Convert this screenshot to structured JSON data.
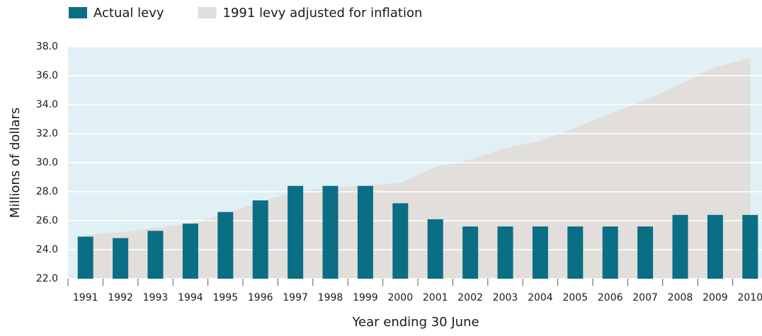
{
  "chart_data": {
    "type": "bar",
    "y_label": "Millions of dollars",
    "x_label": "Year ending 30 June",
    "categories": [
      "1991",
      "1992",
      "1993",
      "1994",
      "1995",
      "1996",
      "1997",
      "1998",
      "1999",
      "2000",
      "2001",
      "2002",
      "2003",
      "2004",
      "2005",
      "2006",
      "2007",
      "2008",
      "2009",
      "2010"
    ],
    "series": [
      {
        "name": "Actual levy",
        "type": "bar",
        "color": "#0a6e85",
        "values": [
          24.9,
          24.8,
          25.3,
          25.8,
          26.6,
          27.4,
          28.4,
          28.4,
          28.4,
          27.2,
          26.1,
          25.6,
          25.6,
          25.6,
          25.6,
          25.6,
          25.6,
          26.4,
          26.4,
          26.4
        ]
      },
      {
        "name": "1991 levy adjusted for inflation",
        "type": "area",
        "color": "#e2dedb",
        "values": [
          25.0,
          25.2,
          25.5,
          25.8,
          26.5,
          27.3,
          28.0,
          28.3,
          28.4,
          28.6,
          29.7,
          30.2,
          31.0,
          31.5,
          32.4,
          33.4,
          34.3,
          35.4,
          36.6,
          37.2
        ]
      }
    ],
    "ylim": [
      22,
      38
    ],
    "yticks": [
      {
        "value": 22,
        "label": "22.0"
      },
      {
        "value": 24,
        "label": "24.0"
      },
      {
        "value": 26,
        "label": "26.0"
      },
      {
        "value": 28,
        "label": "28.0"
      },
      {
        "value": 30,
        "label": "30.0"
      },
      {
        "value": 32,
        "label": "32.0"
      },
      {
        "value": 34,
        "label": "34.0"
      },
      {
        "value": 36,
        "label": "36.0"
      },
      {
        "value": 38,
        "label": "38.0"
      }
    ],
    "grid": true,
    "legend": "top-left",
    "background": "#e0f0f5"
  }
}
